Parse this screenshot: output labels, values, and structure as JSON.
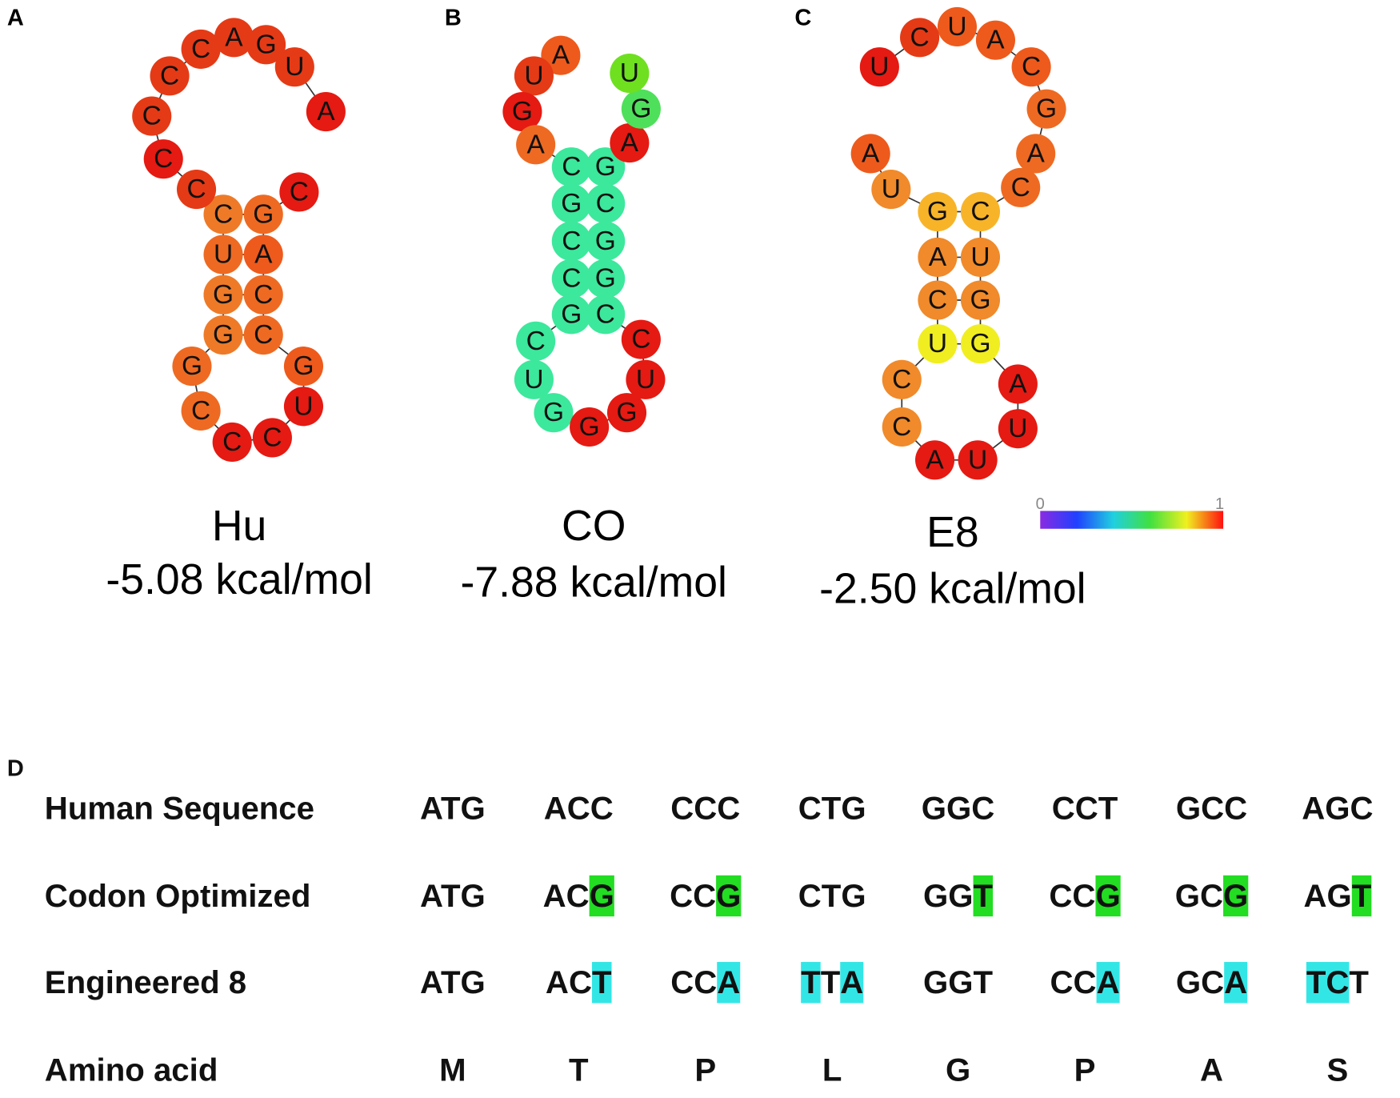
{
  "panels": [
    {
      "label": "A",
      "name": "Hu",
      "energy": "-5.08 kcal/mol",
      "nodes": [
        {
          "base": "C",
          "color": "#e51a12"
        },
        {
          "base": "G",
          "color": "#ee6a22"
        },
        {
          "base": "A",
          "color": "#ee5a1c"
        },
        {
          "base": "C",
          "color": "#ee6a22"
        },
        {
          "base": "C",
          "color": "#ee6a22"
        },
        {
          "base": "G",
          "color": "#ee5a1c"
        },
        {
          "base": "U",
          "color": "#e51a12"
        },
        {
          "base": "C",
          "color": "#e51a12"
        },
        {
          "base": "C",
          "color": "#e51a12"
        },
        {
          "base": "C",
          "color": "#ee6a22"
        },
        {
          "base": "G",
          "color": "#ee6a22"
        },
        {
          "base": "G",
          "color": "#ee7a28"
        },
        {
          "base": "G",
          "color": "#ee7a28"
        },
        {
          "base": "U",
          "color": "#ee6a22"
        },
        {
          "base": "C",
          "color": "#ee7a28"
        },
        {
          "base": "C",
          "color": "#e53a16"
        },
        {
          "base": "C",
          "color": "#e51a12"
        },
        {
          "base": "C",
          "color": "#e53a16"
        },
        {
          "base": "C",
          "color": "#e53a16"
        },
        {
          "base": "C",
          "color": "#e53a16"
        },
        {
          "base": "A",
          "color": "#e53a16"
        },
        {
          "base": "G",
          "color": "#e53a16"
        },
        {
          "base": "U",
          "color": "#e53a16"
        },
        {
          "base": "A",
          "color": "#e51a12"
        }
      ]
    },
    {
      "label": "B",
      "name": "CO",
      "energy": "-7.88 kcal/mol",
      "nodes": [
        {
          "base": "A",
          "color": "#ee5a1c"
        },
        {
          "base": "U",
          "color": "#e53a16"
        },
        {
          "base": "G",
          "color": "#e51a12"
        },
        {
          "base": "A",
          "color": "#ee6a22"
        },
        {
          "base": "C",
          "color": "#3ce89c"
        },
        {
          "base": "G",
          "color": "#3ce89c"
        },
        {
          "base": "C",
          "color": "#3ce89c"
        },
        {
          "base": "C",
          "color": "#3ce89c"
        },
        {
          "base": "G",
          "color": "#3ce89c"
        },
        {
          "base": "C",
          "color": "#3ce89c"
        },
        {
          "base": "U",
          "color": "#3ce89c"
        },
        {
          "base": "G",
          "color": "#3ce89c"
        },
        {
          "base": "G",
          "color": "#e51a12"
        },
        {
          "base": "G",
          "color": "#e51a12"
        },
        {
          "base": "U",
          "color": "#e51a12"
        },
        {
          "base": "C",
          "color": "#e51a12"
        },
        {
          "base": "C",
          "color": "#3ce89c"
        },
        {
          "base": "G",
          "color": "#3ce89c"
        },
        {
          "base": "G",
          "color": "#3ce89c"
        },
        {
          "base": "C",
          "color": "#3ce89c"
        },
        {
          "base": "G",
          "color": "#3ce89c"
        },
        {
          "base": "A",
          "color": "#e51a12"
        },
        {
          "base": "G",
          "color": "#4ee05a"
        },
        {
          "base": "U",
          "color": "#6ee020"
        }
      ]
    },
    {
      "label": "C",
      "name": "E8",
      "energy": "-2.50 kcal/mol",
      "nodes": [
        {
          "base": "A",
          "color": "#ee5a1c"
        },
        {
          "base": "U",
          "color": "#f08a2a"
        },
        {
          "base": "G",
          "color": "#f8b428"
        },
        {
          "base": "A",
          "color": "#f08a2a"
        },
        {
          "base": "C",
          "color": "#f08a2a"
        },
        {
          "base": "U",
          "color": "#f0ee20"
        },
        {
          "base": "C",
          "color": "#f08a2a"
        },
        {
          "base": "C",
          "color": "#f08a2a"
        },
        {
          "base": "A",
          "color": "#e51a12"
        },
        {
          "base": "U",
          "color": "#e51a12"
        },
        {
          "base": "U",
          "color": "#e51a12"
        },
        {
          "base": "A",
          "color": "#e51a12"
        },
        {
          "base": "G",
          "color": "#f0ee20"
        },
        {
          "base": "G",
          "color": "#f08a2a"
        },
        {
          "base": "U",
          "color": "#f08a2a"
        },
        {
          "base": "C",
          "color": "#f8b428"
        },
        {
          "base": "C",
          "color": "#ee6a22"
        },
        {
          "base": "A",
          "color": "#ee6a22"
        },
        {
          "base": "G",
          "color": "#ee6a22"
        },
        {
          "base": "C",
          "color": "#ee5a1c"
        },
        {
          "base": "A",
          "color": "#ee5a1c"
        },
        {
          "base": "U",
          "color": "#ee5a1c"
        },
        {
          "base": "C",
          "color": "#e53a16"
        },
        {
          "base": "U",
          "color": "#e51a12"
        }
      ]
    }
  ],
  "colorbar": {
    "min_label": "0",
    "max_label": "1"
  },
  "table": {
    "label": "D",
    "rows": [
      {
        "label": "Human Sequence",
        "cells": [
          [
            {
              "text": "ATG"
            }
          ],
          [
            {
              "text": "ACC"
            }
          ],
          [
            {
              "text": "CCC"
            }
          ],
          [
            {
              "text": "CTG"
            }
          ],
          [
            {
              "text": "GGC"
            }
          ],
          [
            {
              "text": "CCT"
            }
          ],
          [
            {
              "text": "GCC"
            }
          ],
          [
            {
              "text": "AGC"
            }
          ]
        ]
      },
      {
        "label": "Codon Optimized",
        "cells": [
          [
            {
              "text": "ATG"
            }
          ],
          [
            {
              "text": "AC"
            },
            {
              "text": "G",
              "highlight": "#22dd22"
            }
          ],
          [
            {
              "text": "CC"
            },
            {
              "text": "G",
              "highlight": "#22dd22"
            }
          ],
          [
            {
              "text": "CTG"
            }
          ],
          [
            {
              "text": "GG"
            },
            {
              "text": "T",
              "highlight": "#22dd22"
            }
          ],
          [
            {
              "text": "CC"
            },
            {
              "text": "G",
              "highlight": "#22dd22"
            }
          ],
          [
            {
              "text": "GC"
            },
            {
              "text": "G",
              "highlight": "#22dd22"
            }
          ],
          [
            {
              "text": "AG"
            },
            {
              "text": "T",
              "highlight": "#22dd22"
            }
          ]
        ]
      },
      {
        "label": "Engineered 8",
        "cells": [
          [
            {
              "text": "ATG"
            }
          ],
          [
            {
              "text": "AC"
            },
            {
              "text": "T",
              "highlight": "#33e6e6"
            }
          ],
          [
            {
              "text": "CC"
            },
            {
              "text": "A",
              "highlight": "#33e6e6"
            }
          ],
          [
            {
              "text": "T",
              "highlight": "#33e6e6"
            },
            {
              "text": "T"
            },
            {
              "text": "A",
              "highlight": "#33e6e6"
            }
          ],
          [
            {
              "text": "GGT"
            }
          ],
          [
            {
              "text": "CC"
            },
            {
              "text": "A",
              "highlight": "#33e6e6"
            }
          ],
          [
            {
              "text": "GC"
            },
            {
              "text": "A",
              "highlight": "#33e6e6"
            }
          ],
          [
            {
              "text": "TC",
              "highlight": "#33e6e6"
            },
            {
              "text": "T"
            }
          ]
        ]
      },
      {
        "label": "Amino acid",
        "cells": [
          [
            {
              "text": "M"
            }
          ],
          [
            {
              "text": "T"
            }
          ],
          [
            {
              "text": "P"
            }
          ],
          [
            {
              "text": "L"
            }
          ],
          [
            {
              "text": "G"
            }
          ],
          [
            {
              "text": "P"
            }
          ],
          [
            {
              "text": "A"
            }
          ],
          [
            {
              "text": "S"
            }
          ]
        ]
      }
    ]
  }
}
